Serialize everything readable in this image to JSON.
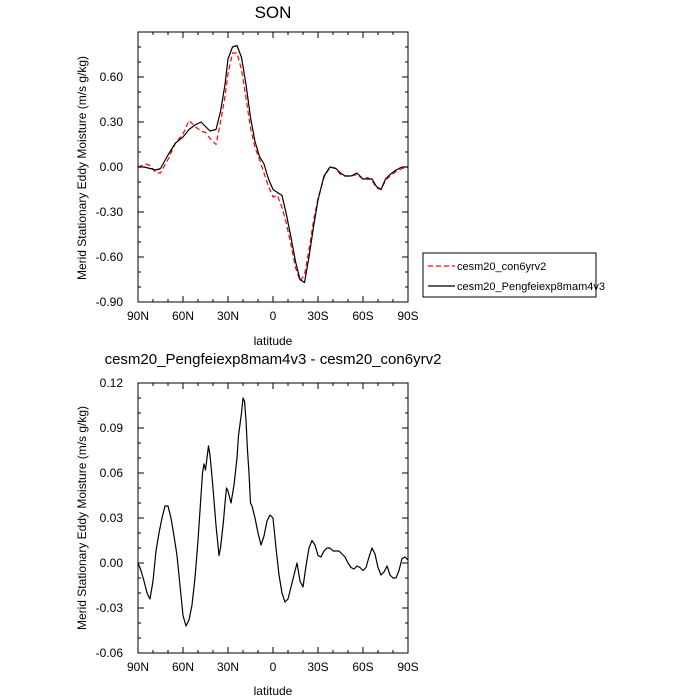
{
  "colors": {
    "control": "#ff0000",
    "experiment": "#000000",
    "axes": "#000000"
  },
  "chart_data": [
    {
      "type": "line",
      "title": "SON",
      "xlabel": "latitude",
      "ylabel": "Merid Stationary Eddy Moisture (m/s g/kg)",
      "xlim": [
        90,
        -90
      ],
      "ylim": [
        -0.9,
        0.9
      ],
      "xticks": [
        90,
        60,
        30,
        0,
        -30,
        -60,
        -90
      ],
      "xtick_labels": [
        "90N",
        "60N",
        "30N",
        "0",
        "30S",
        "60S",
        "90S"
      ],
      "yticks": [
        -0.9,
        -0.6,
        -0.3,
        0.0,
        0.3,
        0.6
      ],
      "ytick_labels": [
        "-0.90",
        "-0.60",
        "-0.30",
        "0.00",
        "0.30",
        "0.60"
      ],
      "legend": {
        "placement": "right",
        "boxed": true
      },
      "series": [
        {
          "name": "cesm20_con6yrv2",
          "style": "dashed",
          "color": "#ff0000",
          "x": [
            90,
            85,
            82,
            78,
            75,
            70,
            65,
            60,
            56,
            52,
            48,
            45,
            42,
            38,
            35,
            32,
            30,
            27,
            24,
            21,
            18,
            15,
            12,
            9,
            6,
            3,
            0,
            -3,
            -6,
            -9,
            -12,
            -15,
            -18,
            -21,
            -24,
            -27,
            -30,
            -34,
            -38,
            -42,
            -45,
            -48,
            -52,
            -56,
            -60,
            -63,
            -66,
            -69,
            -72,
            -75,
            -78,
            -82,
            -86,
            -90
          ],
          "y": [
            0.0,
            0.02,
            0.01,
            -0.04,
            -0.04,
            0.05,
            0.16,
            0.22,
            0.31,
            0.27,
            0.24,
            0.23,
            0.19,
            0.15,
            0.3,
            0.47,
            0.62,
            0.76,
            0.76,
            0.65,
            0.46,
            0.26,
            0.13,
            0.05,
            -0.04,
            -0.13,
            -0.2,
            -0.19,
            -0.27,
            -0.38,
            -0.52,
            -0.67,
            -0.76,
            -0.72,
            -0.55,
            -0.36,
            -0.21,
            -0.07,
            0.0,
            -0.01,
            -0.05,
            -0.06,
            -0.06,
            -0.05,
            -0.08,
            -0.07,
            -0.09,
            -0.14,
            -0.15,
            -0.09,
            -0.06,
            -0.03,
            -0.01,
            0.0
          ]
        },
        {
          "name": "cesm20_Pengfeiexp8mam4v3",
          "style": "solid",
          "color": "#000000",
          "x": [
            90,
            86,
            82,
            78,
            75,
            70,
            65,
            60,
            56,
            52,
            48,
            45,
            42,
            38,
            35,
            32,
            30,
            27,
            24,
            21,
            18,
            15,
            12,
            9,
            6,
            3,
            0,
            -3,
            -6,
            -9,
            -12,
            -15,
            -18,
            -21,
            -24,
            -27,
            -30,
            -34,
            -38,
            -42,
            -45,
            -48,
            -52,
            -56,
            -60,
            -63,
            -66,
            -69,
            -72,
            -75,
            -78,
            -82,
            -86,
            -90
          ],
          "y": [
            0.0,
            0.0,
            -0.01,
            -0.02,
            -0.01,
            0.08,
            0.16,
            0.2,
            0.25,
            0.28,
            0.3,
            0.27,
            0.24,
            0.25,
            0.37,
            0.55,
            0.72,
            0.8,
            0.81,
            0.73,
            0.55,
            0.33,
            0.17,
            0.07,
            0.02,
            -0.08,
            -0.15,
            -0.17,
            -0.19,
            -0.32,
            -0.47,
            -0.63,
            -0.75,
            -0.77,
            -0.6,
            -0.4,
            -0.22,
            -0.06,
            0.0,
            -0.01,
            -0.04,
            -0.06,
            -0.06,
            -0.04,
            -0.08,
            -0.08,
            -0.08,
            -0.13,
            -0.15,
            -0.08,
            -0.05,
            -0.02,
            0.0,
            0.0
          ]
        }
      ]
    },
    {
      "type": "line",
      "title": "cesm20_Pengfeiexp8mam4v3 - cesm20_con6yrv2",
      "xlabel": "latitude",
      "ylabel": "Merid Stationary Eddy Moisture (m/s g/kg)",
      "xlim": [
        90,
        -90
      ],
      "ylim": [
        -0.06,
        0.12
      ],
      "xticks": [
        90,
        60,
        30,
        0,
        -30,
        -60,
        -90
      ],
      "xtick_labels": [
        "90N",
        "60N",
        "30N",
        "0",
        "30S",
        "60S",
        "90S"
      ],
      "yticks": [
        -0.06,
        -0.03,
        0.0,
        0.03,
        0.06,
        0.09,
        0.12
      ],
      "ytick_labels": [
        "-0.06",
        "-0.03",
        "0.00",
        "0.03",
        "0.06",
        "0.09",
        "0.12"
      ],
      "series": [
        {
          "style": "solid",
          "color": "#000000",
          "x": [
            90,
            88,
            86,
            84,
            82,
            80,
            78,
            76,
            74,
            72,
            70,
            68,
            66,
            64,
            62,
            60,
            58,
            56,
            54,
            52,
            50,
            48,
            47,
            46,
            45,
            44,
            43,
            42,
            40,
            38,
            36,
            35,
            33,
            32,
            31,
            30,
            28,
            26,
            24,
            23,
            21,
            20,
            19,
            18,
            17,
            16,
            15,
            14,
            12,
            10,
            8,
            6,
            4,
            2,
            0,
            -2,
            -4,
            -6,
            -8,
            -10,
            -12,
            -14,
            -16,
            -18,
            -20,
            -22,
            -24,
            -26,
            -28,
            -30,
            -32,
            -34,
            -36,
            -38,
            -40,
            -42,
            -44,
            -46,
            -48,
            -50,
            -52,
            -54,
            -56,
            -58,
            -60,
            -62,
            -64,
            -66,
            -68,
            -70,
            -72,
            -74,
            -76,
            -78,
            -80,
            -82,
            -84,
            -86,
            -88,
            -90
          ],
          "y": [
            0.0,
            -0.005,
            -0.012,
            -0.02,
            -0.024,
            -0.012,
            0.008,
            0.02,
            0.03,
            0.038,
            0.038,
            0.03,
            0.018,
            0.005,
            -0.015,
            -0.035,
            -0.042,
            -0.038,
            -0.028,
            -0.01,
            0.015,
            0.045,
            0.06,
            0.066,
            0.062,
            0.07,
            0.078,
            0.072,
            0.05,
            0.025,
            0.005,
            0.01,
            0.028,
            0.04,
            0.05,
            0.048,
            0.04,
            0.052,
            0.07,
            0.085,
            0.1,
            0.11,
            0.108,
            0.095,
            0.075,
            0.06,
            0.04,
            0.038,
            0.03,
            0.02,
            0.012,
            0.018,
            0.028,
            0.032,
            0.03,
            0.01,
            -0.008,
            -0.02,
            -0.026,
            -0.024,
            -0.016,
            -0.008,
            0.0,
            -0.012,
            -0.016,
            -0.002,
            0.01,
            0.015,
            0.012,
            0.005,
            0.004,
            0.008,
            0.01,
            0.01,
            0.008,
            0.008,
            0.008,
            0.006,
            0.004,
            0.0,
            -0.003,
            -0.004,
            -0.002,
            -0.003,
            -0.005,
            -0.003,
            0.004,
            0.01,
            0.006,
            -0.003,
            -0.008,
            -0.006,
            -0.002,
            -0.008,
            -0.01,
            -0.01,
            -0.005,
            0.003,
            0.004,
            0.002
          ]
        }
      ]
    }
  ]
}
